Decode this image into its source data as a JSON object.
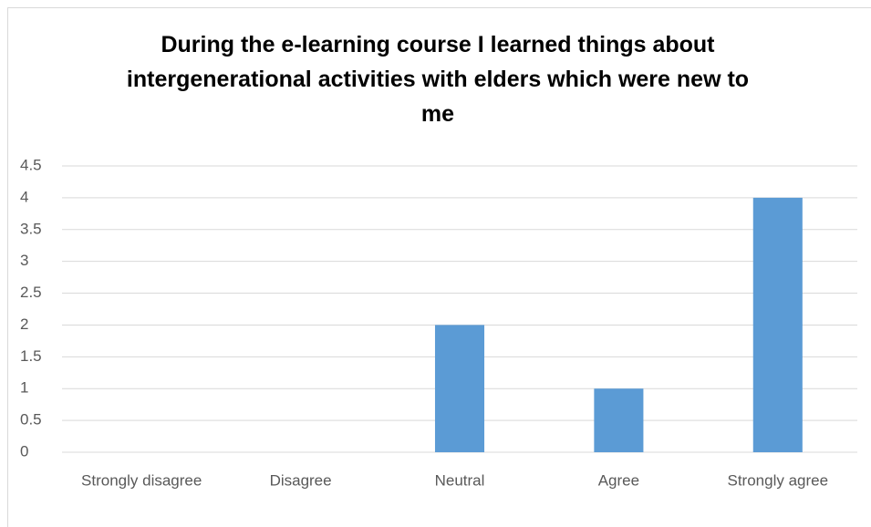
{
  "chart_data": {
    "type": "bar",
    "title": "During the e-learning course I learned things about intergenerational activities with elders which were new to me",
    "categories": [
      "Strongly disagree",
      "Disagree",
      "Neutral",
      "Agree",
      "Strongly agree"
    ],
    "values": [
      0,
      0,
      2,
      1,
      4
    ],
    "color": "#5b9bd5",
    "ylim": [
      0,
      4.5
    ],
    "yticks": [
      0,
      0.5,
      1,
      1.5,
      2,
      2.5,
      3,
      3.5,
      4,
      4.5
    ],
    "grid": true
  }
}
